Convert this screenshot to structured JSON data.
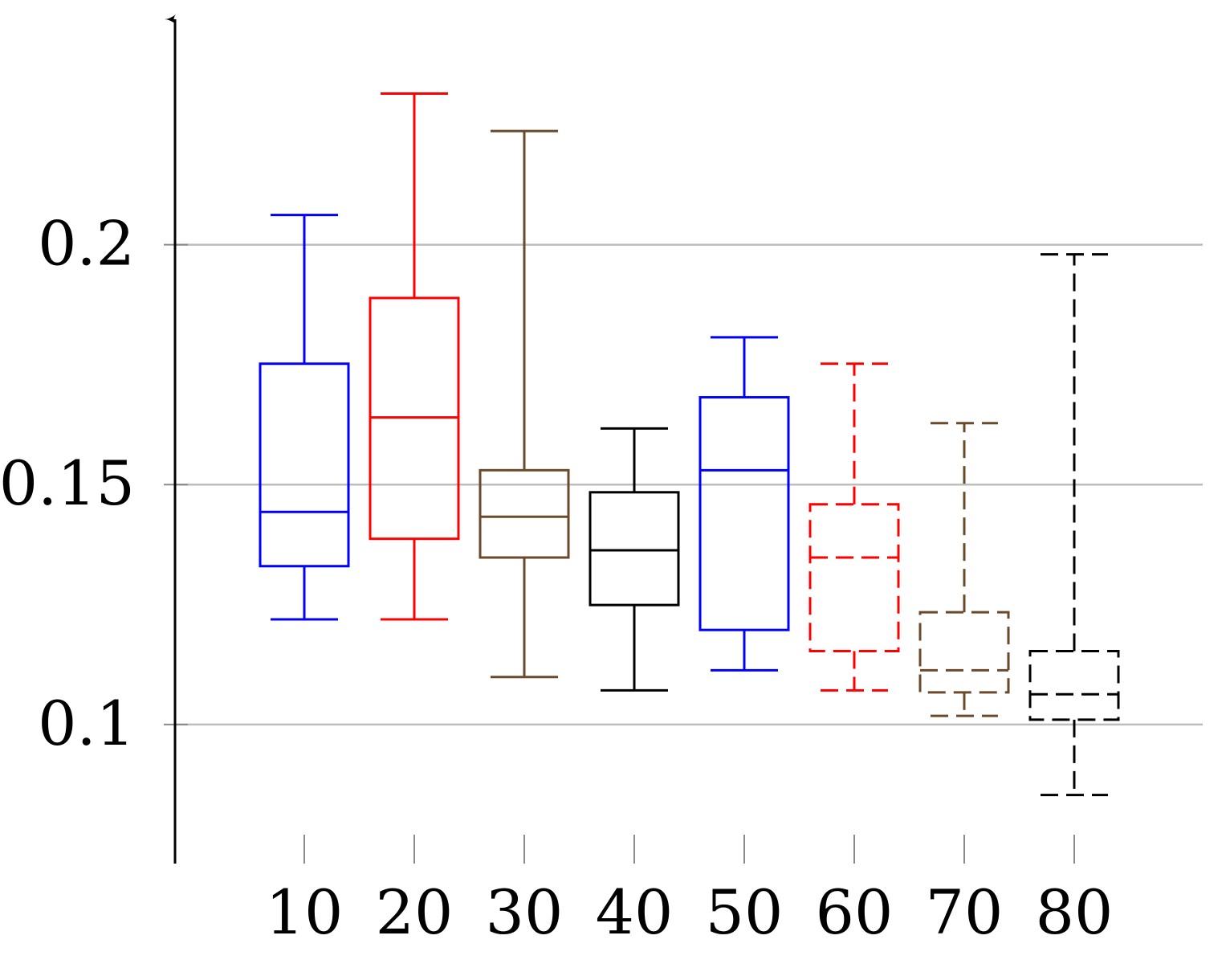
{
  "chart_data": {
    "type": "boxplot",
    "title": "",
    "xlabel": "",
    "ylabel": "",
    "categories": [
      "10",
      "20",
      "30",
      "40",
      "50",
      "60",
      "70",
      "80"
    ],
    "ylim": [
      0.071,
      0.247
    ],
    "yticks": [
      0.1,
      0.15,
      0.2
    ],
    "ytick_labels": [
      "0.1",
      "0.15",
      "0.2"
    ],
    "grid": "horizontal",
    "boxes": [
      {
        "category": "10",
        "whisker_low": 0.1219,
        "q1": 0.133,
        "median": 0.1443,
        "q3": 0.1752,
        "whisker_high": 0.2062,
        "color": "#0000ff",
        "style": "solid"
      },
      {
        "category": "20",
        "whisker_low": 0.1219,
        "q1": 0.1387,
        "median": 0.164,
        "q3": 0.1889,
        "whisker_high": 0.2315,
        "color": "#ff0000",
        "style": "solid"
      },
      {
        "category": "30",
        "whisker_low": 0.1099,
        "q1": 0.1348,
        "median": 0.1433,
        "q3": 0.153,
        "whisker_high": 0.2237,
        "color": "#6b4a2b",
        "style": "solid"
      },
      {
        "category": "40",
        "whisker_low": 0.1071,
        "q1": 0.1249,
        "median": 0.1363,
        "q3": 0.1484,
        "whisker_high": 0.1617,
        "color": "#000000",
        "style": "solid"
      },
      {
        "category": "50",
        "whisker_low": 0.1113,
        "q1": 0.1197,
        "median": 0.153,
        "q3": 0.1682,
        "whisker_high": 0.1807,
        "color": "#0000ff",
        "style": "solid"
      },
      {
        "category": "60",
        "whisker_low": 0.1071,
        "q1": 0.1153,
        "median": 0.1348,
        "q3": 0.1459,
        "whisker_high": 0.1752,
        "color": "#ff0000",
        "style": "dashed"
      },
      {
        "category": "70",
        "whisker_low": 0.1018,
        "q1": 0.1067,
        "median": 0.1113,
        "q3": 0.1234,
        "whisker_high": 0.1628,
        "color": "#6b4a2b",
        "style": "dashed"
      },
      {
        "category": "80",
        "whisker_low": 0.0853,
        "q1": 0.101,
        "median": 0.1063,
        "q3": 0.1153,
        "whisker_high": 0.198,
        "color": "#000000",
        "style": "dashed"
      }
    ]
  }
}
